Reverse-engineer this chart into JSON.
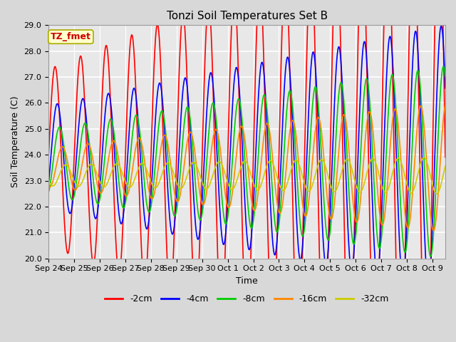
{
  "title": "Tonzi Soil Temperatures Set B",
  "xlabel": "Time",
  "ylabel": "Soil Temperature (C)",
  "ylim": [
    20.0,
    29.0
  ],
  "yticks": [
    20.0,
    21.0,
    22.0,
    23.0,
    24.0,
    25.0,
    26.0,
    27.0,
    28.0,
    29.0
  ],
  "annotation_text": "TZ_fmet",
  "annotation_color": "#cc0000",
  "annotation_bg": "#ffffcc",
  "annotation_border": "#aaaa00",
  "series": [
    {
      "label": "-2cm",
      "color": "#ff0000",
      "amplitude": 3.4,
      "baseline": 23.9,
      "phase": 0.0,
      "phase_drift": 0.0,
      "amp_growth": 0.12
    },
    {
      "label": "-4cm",
      "color": "#0000ff",
      "amplitude": 2.0,
      "baseline": 23.9,
      "phase": 0.55,
      "phase_drift": 0.0,
      "amp_growth": 0.1
    },
    {
      "label": "-8cm",
      "color": "#00cc00",
      "amplitude": 1.3,
      "baseline": 23.7,
      "phase": 1.1,
      "phase_drift": 0.0,
      "amp_growth": 0.12
    },
    {
      "label": "-16cm",
      "color": "#ff8800",
      "amplitude": 0.75,
      "baseline": 23.5,
      "phase": 1.8,
      "phase_drift": 0.0,
      "amp_growth": 0.15
    },
    {
      "label": "-32cm",
      "color": "#cccc00",
      "amplitude": 0.4,
      "baseline": 23.2,
      "phase": 2.6,
      "phase_drift": 0.0,
      "amp_growth": 0.05
    }
  ],
  "xtick_labels": [
    "Sep 24",
    "Sep 25",
    "Sep 26",
    "Sep 27",
    "Sep 28",
    "Sep 29",
    "Sep 30",
    "Oct 1",
    "Oct 2",
    "Oct 3",
    "Oct 4",
    "Oct 5",
    "Oct 6",
    "Oct 7",
    "Oct 8",
    "Oct 9"
  ],
  "n_days": 15.5,
  "n_points": 2000,
  "bg_color": "#d8d8d8",
  "plot_bg_color": "#e8e8e8",
  "grid_color": "#ffffff",
  "linewidth": 1.2,
  "title_fontsize": 11,
  "axis_fontsize": 9,
  "tick_fontsize": 8
}
